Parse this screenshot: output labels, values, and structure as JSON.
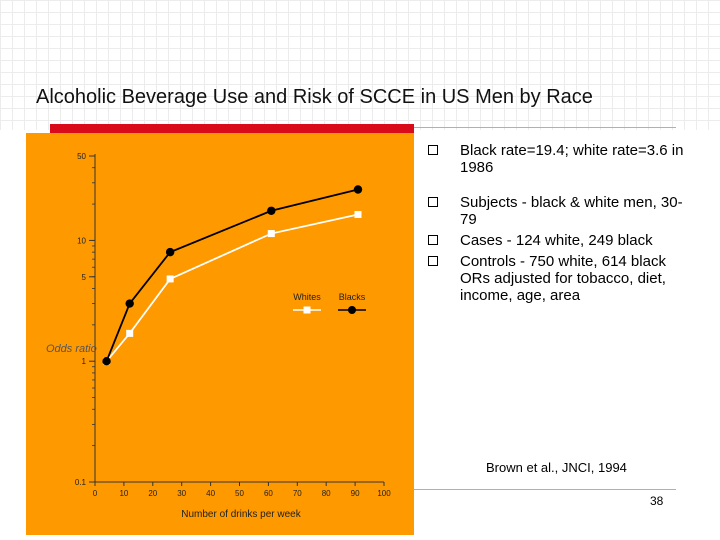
{
  "slide": {
    "title": "Alcoholic Beverage Use and Risk of SCCE in US Men by Race",
    "bullets": [
      "Black rate=19.4; white rate=3.6 in 1986",
      "Subjects - black & white men, 30-79",
      "Cases - 124 white, 249 black",
      "Controls - 750 white, 614 black ORs adjusted for tobacco, diet, income, age, area"
    ],
    "citation": "Brown et al., JNCI, 1994",
    "page_number": "38",
    "colors": {
      "accent_bar": "#d90a1a",
      "chart_bg": "#ff9900"
    }
  },
  "chart_data": {
    "type": "line",
    "title": "",
    "xlabel": "Number of drinks per week",
    "ylabel": "Odds ratio",
    "yscale": "log",
    "xlim": [
      0,
      100
    ],
    "ylim": [
      0.1,
      50
    ],
    "x_ticks": [
      "0",
      "10",
      "20",
      "30",
      "40",
      "50",
      "60",
      "70",
      "80",
      "90",
      "100"
    ],
    "y_ticks": [
      {
        "value": 50,
        "label": "50"
      },
      {
        "value": 10,
        "label": "10"
      },
      {
        "value": 5,
        "label": "5"
      },
      {
        "value": 1,
        "label": "1"
      },
      {
        "value": 0.1,
        "label": "0.1"
      }
    ],
    "series": [
      {
        "name": "Whites",
        "marker": "square",
        "color": "#ffffff",
        "x": [
          4,
          12,
          26,
          61,
          91
        ],
        "y": [
          1.0,
          1.7,
          4.8,
          11.4,
          16.4
        ]
      },
      {
        "name": "Blacks",
        "marker": "circle",
        "color": "#000000",
        "x": [
          4,
          12,
          26,
          61,
          91
        ],
        "y": [
          1.0,
          3.0,
          8.0,
          17.6,
          26.4
        ]
      }
    ]
  }
}
